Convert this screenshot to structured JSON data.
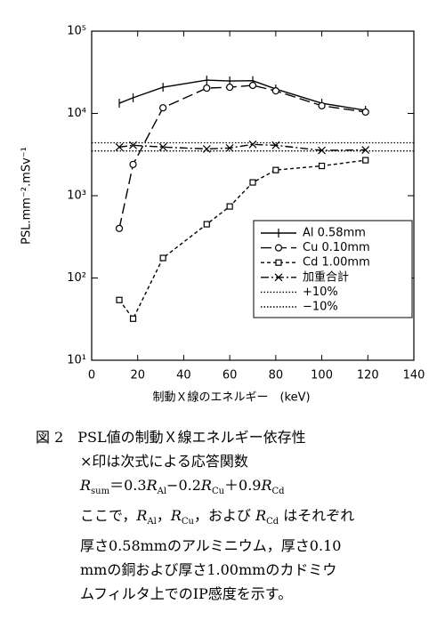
{
  "chart_data": {
    "type": "line",
    "xlabel": "制動Ｘ線のエネルギー　(keV)",
    "ylabel": "PSL.mm⁻².mSv⁻¹",
    "xlim": [
      0,
      140
    ],
    "xticks": [
      0,
      20,
      40,
      60,
      80,
      100,
      120,
      140
    ],
    "ylim": [
      10,
      100000
    ],
    "log_y": true,
    "yticks": [
      {
        "value": 10,
        "label": "10¹"
      },
      {
        "value": 100,
        "label": "10²"
      },
      {
        "value": 1000,
        "label": "10³"
      },
      {
        "value": 10000,
        "label": "10⁴"
      },
      {
        "value": 100000,
        "label": "10⁵"
      }
    ],
    "legend": "lower right",
    "series": [
      {
        "name": "Al 0.58mm",
        "color": "#000000",
        "linestyle": "solid",
        "marker": "plus",
        "x": [
          12,
          18,
          31,
          50,
          60,
          70,
          80,
          100,
          119
        ],
        "values": [
          13300,
          15500,
          20800,
          25400,
          24800,
          25000,
          19800,
          13300,
          10900
        ]
      },
      {
        "name": "Cu 0.10mm",
        "color": "#000000",
        "linestyle": "longdash",
        "marker": "circle",
        "x": [
          12,
          18,
          31,
          50,
          60,
          70,
          80,
          100,
          119
        ],
        "values": [
          400,
          2400,
          11700,
          20300,
          20800,
          21900,
          18800,
          12400,
          10400
        ]
      },
      {
        "name": "Cd 1.00mm",
        "color": "#000000",
        "linestyle": "shortdash",
        "marker": "square",
        "x": [
          12,
          18,
          31,
          50,
          60,
          70,
          80,
          100,
          119
        ],
        "values": [
          54,
          32,
          175,
          450,
          740,
          1450,
          2050,
          2300,
          2700
        ]
      },
      {
        "name": "加重合計",
        "color": "#000000",
        "linestyle": "dashdot",
        "marker": "cross",
        "x": [
          12,
          18,
          31,
          50,
          60,
          70,
          80,
          100,
          119
        ],
        "values": [
          3900,
          4100,
          3900,
          3700,
          3800,
          4200,
          4100,
          3550,
          3600
        ]
      },
      {
        "name": "+10%",
        "color": "#000000",
        "linestyle": "dotted",
        "marker": "none",
        "x": [
          0,
          140
        ],
        "values": [
          4400,
          4400
        ]
      },
      {
        "name": "−10%",
        "color": "#000000",
        "linestyle": "dotted",
        "marker": "none",
        "x": [
          0,
          140
        ],
        "values": [
          3500,
          3500
        ]
      }
    ]
  },
  "caption": {
    "lines": [
      [
        {
          "text": "図 2　PSL値の制動Ｘ線エネルギー依存性"
        }
      ],
      [
        {
          "text": "×印は次式による応答関数"
        }
      ],
      [
        {
          "text": "R",
          "italic": true
        },
        {
          "text": "sum",
          "sub": true
        },
        {
          "text": "＝0.3"
        },
        {
          "text": "R",
          "italic": true
        },
        {
          "text": "Al",
          "sub": true
        },
        {
          "text": "−0.2"
        },
        {
          "text": "R",
          "italic": true
        },
        {
          "text": "Cu",
          "sub": true
        },
        {
          "text": "＋0.9"
        },
        {
          "text": "R",
          "italic": true
        },
        {
          "text": "Cd",
          "sub": true
        }
      ],
      [
        {
          "text": "ここで，"
        },
        {
          "text": "R",
          "italic": true
        },
        {
          "text": "Al",
          "sub": true
        },
        {
          "text": "，"
        },
        {
          "text": "R",
          "italic": true
        },
        {
          "text": "Cu",
          "sub": true
        },
        {
          "text": "，および "
        },
        {
          "text": "R",
          "italic": true
        },
        {
          "text": "Cd",
          "sub": true
        },
        {
          "text": " はそれぞれ"
        }
      ],
      [
        {
          "text": "厚さ0.58mmのアルミニウム，厚さ0.10"
        }
      ],
      [
        {
          "text": "mmの銅および厚さ1.00mmのカドミウ"
        }
      ],
      [
        {
          "text": "ムフィルタ上でのIP感度を示す。"
        }
      ]
    ]
  }
}
